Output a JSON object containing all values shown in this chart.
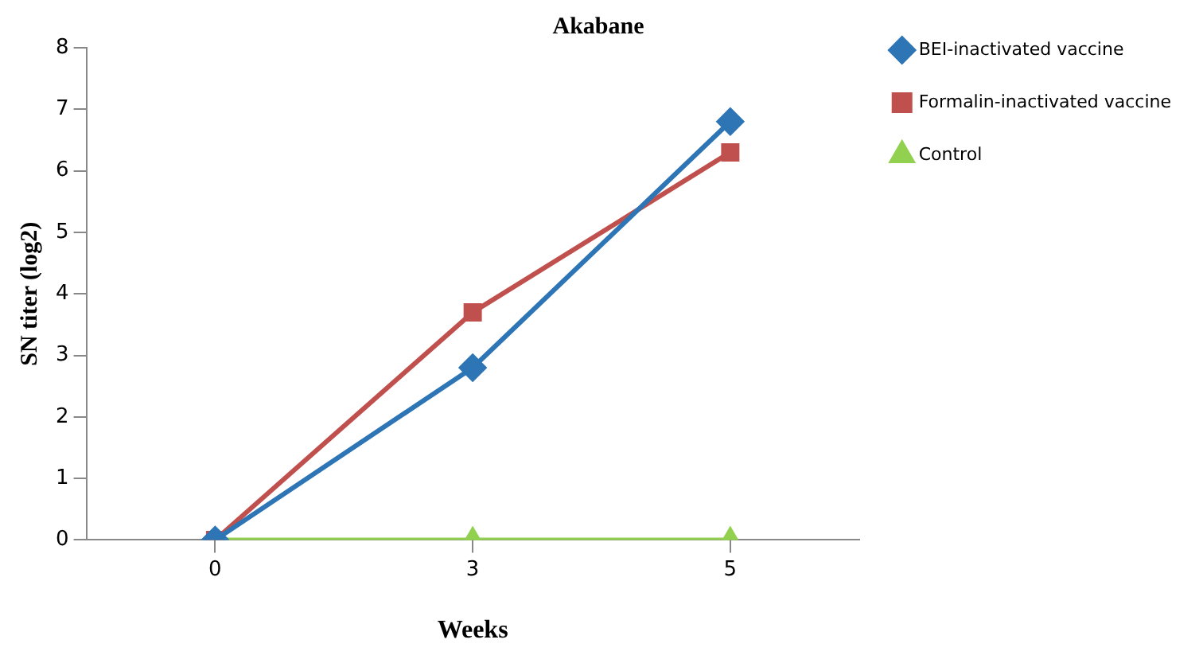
{
  "chart_data": {
    "type": "line",
    "title": "Akabane",
    "xlabel": "Weeks",
    "ylabel": "SN titer (log2)",
    "categories": [
      "0",
      "3",
      "5"
    ],
    "series": [
      {
        "name": "BEI-inactivated vaccine",
        "color": "#2e75b6",
        "values": [
          0,
          2.8,
          6.8
        ],
        "marker": "diamond"
      },
      {
        "name": "Formalin-inactivated vaccine",
        "color": "#c0504d",
        "values": [
          0,
          3.7,
          6.3
        ],
        "marker": "square"
      },
      {
        "name": "Control",
        "color": "#92d050",
        "values": [
          0,
          0,
          0
        ],
        "marker": "triangle"
      }
    ],
    "ylim": [
      0,
      8
    ],
    "yticks": [
      0,
      1,
      2,
      3,
      4,
      5,
      6,
      7,
      8
    ],
    "grid": false,
    "legend": "right",
    "line_style": "solid"
  }
}
